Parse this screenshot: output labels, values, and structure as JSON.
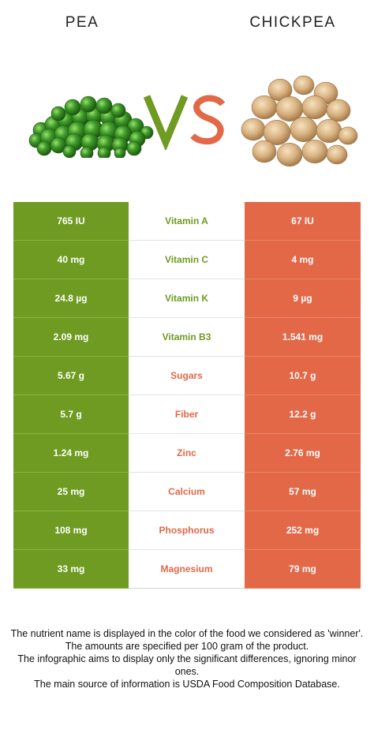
{
  "header": {
    "left_food": "PEA",
    "right_food": "CHICKPEA",
    "vs_text": "VS"
  },
  "colors": {
    "left": "#6f9b22",
    "right": "#e26848",
    "vs_left": "#6f9b22",
    "vs_right": "#e26848"
  },
  "icons": {
    "left": "peas-image",
    "right": "chickpeas-image"
  },
  "rows": [
    {
      "left": "765 IU",
      "nutrient": "Vitamin A",
      "right": "67 IU",
      "winner": "left"
    },
    {
      "left": "40 mg",
      "nutrient": "Vitamin C",
      "right": "4 mg",
      "winner": "left"
    },
    {
      "left": "24.8 µg",
      "nutrient": "Vitamin K",
      "right": "9 µg",
      "winner": "left"
    },
    {
      "left": "2.09 mg",
      "nutrient": "Vitamin B3",
      "right": "1.541 mg",
      "winner": "left"
    },
    {
      "left": "5.67 g",
      "nutrient": "Sugars",
      "right": "10.7 g",
      "winner": "right"
    },
    {
      "left": "5.7 g",
      "nutrient": "Fiber",
      "right": "12.2 g",
      "winner": "right"
    },
    {
      "left": "1.24 mg",
      "nutrient": "Zinc",
      "right": "2.76 mg",
      "winner": "right"
    },
    {
      "left": "25 mg",
      "nutrient": "Calcium",
      "right": "57 mg",
      "winner": "right"
    },
    {
      "left": "108 mg",
      "nutrient": "Phosphorus",
      "right": "252 mg",
      "winner": "right"
    },
    {
      "left": "33 mg",
      "nutrient": "Magnesium",
      "right": "79 mg",
      "winner": "right"
    }
  ],
  "footer": {
    "line1": "The nutrient name is displayed in the color of the food we considered as 'winner'.",
    "line2": "The amounts are specified per 100 gram of the product.",
    "line3": "The infographic aims to display only the significant differences, ignoring minor ones.",
    "line4": "The main source of information is USDA Food Composition Database."
  }
}
